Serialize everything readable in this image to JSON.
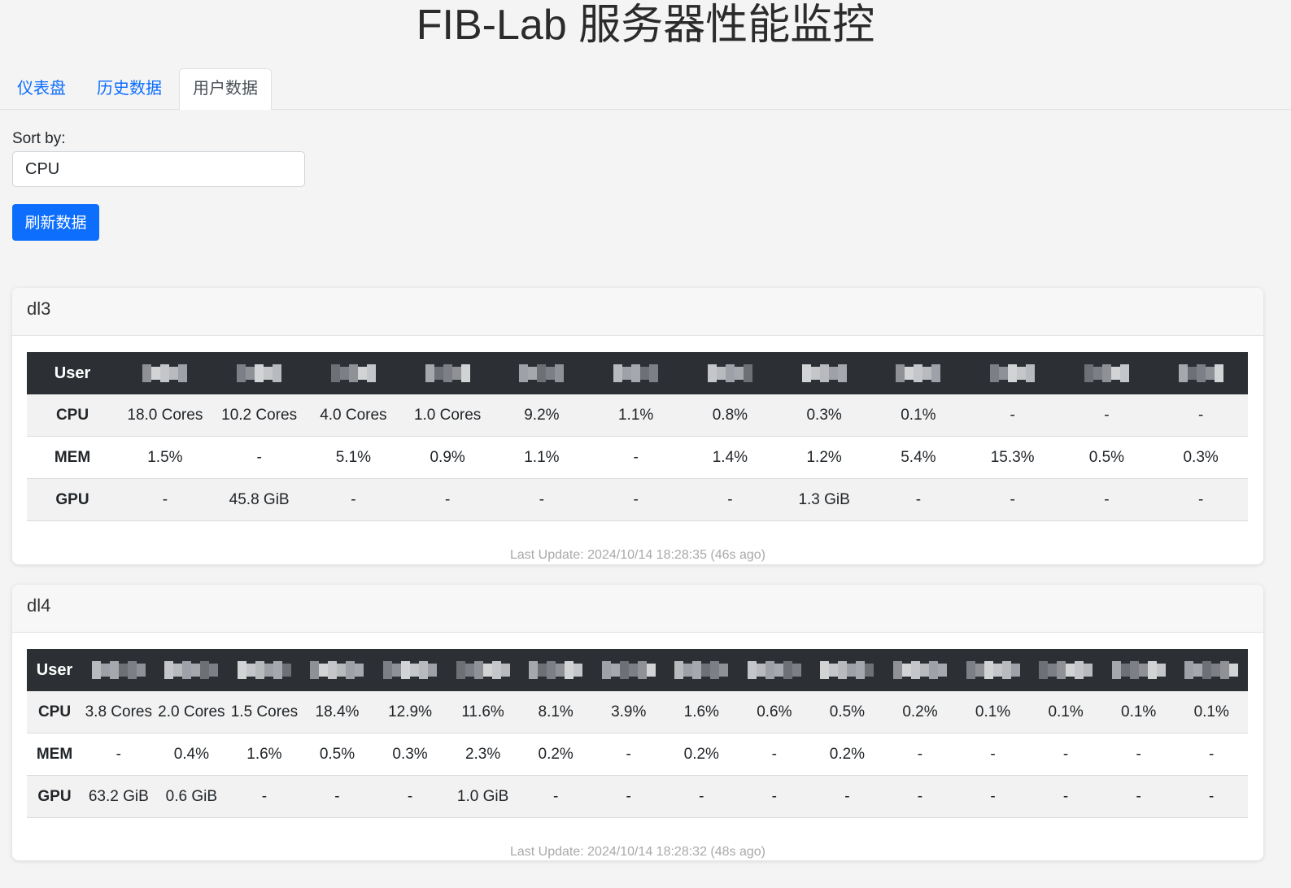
{
  "page": {
    "title": "FIB-Lab 服务器性能监控"
  },
  "tabs": [
    {
      "label": "仪表盘",
      "active": false
    },
    {
      "label": "历史数据",
      "active": false
    },
    {
      "label": "用户数据",
      "active": true
    }
  ],
  "sort": {
    "label": "Sort by:",
    "value": "CPU"
  },
  "refresh_label": "刷新数据",
  "colors": {
    "accent": "#0d6efd",
    "table_header": "#2c3034"
  },
  "servers": [
    {
      "name": "dl3",
      "user_header": "User",
      "row_labels": [
        "CPU",
        "MEM",
        "GPU"
      ],
      "users_redacted": 12,
      "cpu": [
        "18.0 Cores",
        "10.2 Cores",
        "4.0 Cores",
        "1.0 Cores",
        "9.2%",
        "1.1%",
        "0.8%",
        "0.3%",
        "0.1%",
        "-",
        "-",
        "-"
      ],
      "mem": [
        "1.5%",
        "-",
        "5.1%",
        "0.9%",
        "1.1%",
        "-",
        "1.4%",
        "1.2%",
        "5.4%",
        "15.3%",
        "0.5%",
        "0.3%"
      ],
      "gpu": [
        "-",
        "45.8 GiB",
        "-",
        "-",
        "-",
        "-",
        "-",
        "1.3 GiB",
        "-",
        "-",
        "-",
        "-"
      ],
      "last_update": "Last Update: 2024/10/14 18:28:35 (46s ago)"
    },
    {
      "name": "dl4",
      "user_header": "User",
      "row_labels": [
        "CPU",
        "MEM",
        "GPU"
      ],
      "users_redacted": 16,
      "cpu": [
        "3.8 Cores",
        "2.0 Cores",
        "1.5 Cores",
        "18.4%",
        "12.9%",
        "11.6%",
        "8.1%",
        "3.9%",
        "1.6%",
        "0.6%",
        "0.5%",
        "0.2%",
        "0.1%",
        "0.1%",
        "0.1%",
        "0.1%"
      ],
      "mem": [
        "-",
        "0.4%",
        "1.6%",
        "0.5%",
        "0.3%",
        "2.3%",
        "0.2%",
        "-",
        "0.2%",
        "-",
        "0.2%",
        "-",
        "-",
        "-",
        "-",
        "-"
      ],
      "gpu": [
        "63.2 GiB",
        "0.6 GiB",
        "-",
        "-",
        "-",
        "1.0 GiB",
        "-",
        "-",
        "-",
        "-",
        "-",
        "-",
        "-",
        "-",
        "-",
        "-"
      ],
      "last_update": "Last Update: 2024/10/14 18:28:32 (48s ago)"
    }
  ]
}
